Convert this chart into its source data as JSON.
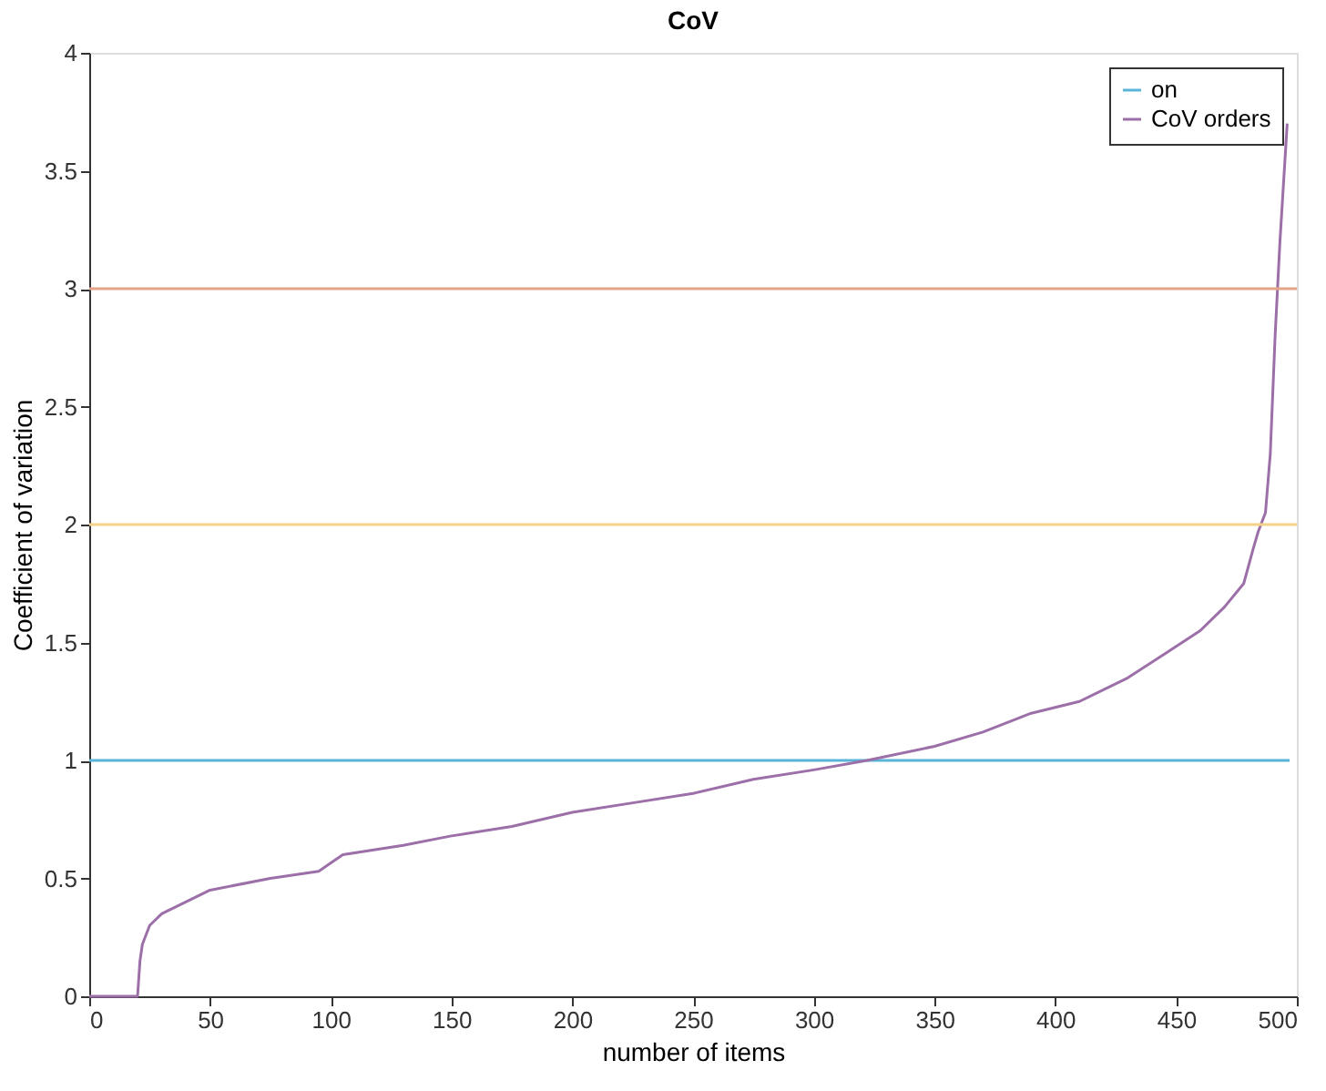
{
  "chart_data": {
    "type": "line",
    "title": "CoV",
    "xlabel": "number of items",
    "ylabel": "Coefficient of variation",
    "xlim": [
      0,
      500
    ],
    "xticks": [
      0,
      50,
      100,
      150,
      200,
      250,
      300,
      350,
      400,
      450,
      500
    ],
    "ylim": [
      0,
      4
    ],
    "yticks": [
      0,
      0.5,
      1,
      1.5,
      2,
      2.5,
      3,
      3.5,
      4
    ],
    "grid": false,
    "legend": "top right",
    "series": [
      {
        "name": "on",
        "color": "#5ab4d8",
        "x": [
          0,
          497
        ],
        "values": [
          1,
          1
        ]
      },
      {
        "name": "CoV orders",
        "color": "#9c6fa8",
        "x": [
          0,
          20,
          21,
          22,
          25,
          30,
          40,
          50,
          75,
          95,
          105,
          130,
          150,
          175,
          200,
          225,
          250,
          275,
          300,
          322,
          350,
          370,
          390,
          410,
          430,
          445,
          460,
          470,
          478,
          482,
          484,
          487,
          489,
          491,
          493,
          496
        ],
        "values": [
          0,
          0,
          0.15,
          0.22,
          0.3,
          0.35,
          0.4,
          0.45,
          0.5,
          0.53,
          0.6,
          0.64,
          0.68,
          0.72,
          0.78,
          0.82,
          0.86,
          0.92,
          0.96,
          1.0,
          1.06,
          1.12,
          1.2,
          1.25,
          1.35,
          1.45,
          1.55,
          1.65,
          1.75,
          1.9,
          1.97,
          2.05,
          2.3,
          2.8,
          3.2,
          3.7
        ]
      }
    ],
    "ref_lines": [
      {
        "axis": "y",
        "value": 2,
        "color": "#f2d38a"
      },
      {
        "axis": "y",
        "value": 3,
        "color": "#e3a488"
      }
    ]
  }
}
